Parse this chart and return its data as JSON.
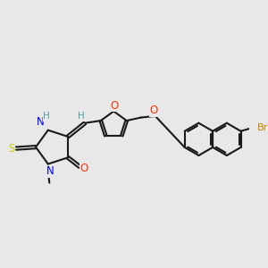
{
  "background_color": "#e8e8e8",
  "bond_color": "#1a1a1a",
  "bond_width": 1.5,
  "atom_colors": {
    "N": "#0000ff",
    "O": "#ff3300",
    "S": "#cccc00",
    "Br": "#cc8800",
    "H": "#4aa0a0"
  },
  "font_size": 7.5,
  "double_sep": 0.055
}
